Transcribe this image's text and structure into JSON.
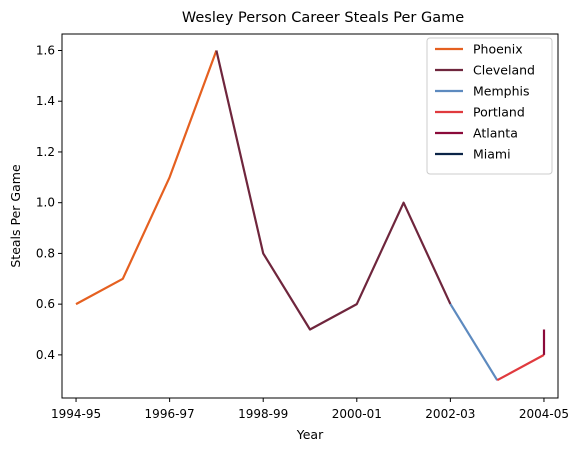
{
  "chart_data": {
    "type": "line",
    "title": "Wesley Person Career Steals Per Game",
    "xlabel": "Year",
    "ylabel": "Steals Per Game",
    "x_tick_labels": [
      "1994-95",
      "1996-97",
      "1998-99",
      "2000-01",
      "2002-03",
      "2004-05"
    ],
    "y_ticks": [
      0.4,
      0.6,
      0.8,
      1.0,
      1.2,
      1.4,
      1.6
    ],
    "y_tick_labels": [
      "0.4",
      "0.6",
      "0.8",
      "1.0",
      "1.2",
      "1.4",
      "1.6"
    ],
    "xlim": [
      -0.3,
      10.3
    ],
    "ylim": [
      0.23,
      1.665
    ],
    "grid": false,
    "legend_position": "top-right",
    "series": [
      {
        "name": "Phoenix",
        "color": "#E56020",
        "x": [
          "1994-95",
          "1995-96",
          "1996-97",
          "1997-98"
        ],
        "values": [
          0.6,
          0.7,
          1.1,
          1.6
        ]
      },
      {
        "name": "Cleveland",
        "color": "#6F263D",
        "x": [
          "1997-98",
          "1998-99",
          "1999-00",
          "2000-01",
          "2001-02",
          "2002-03"
        ],
        "values": [
          1.6,
          0.8,
          0.5,
          0.6,
          1.0,
          0.6
        ]
      },
      {
        "name": "Memphis",
        "color": "#5D8ABF",
        "x": [
          "2002-03",
          "2003-04"
        ],
        "values": [
          0.6,
          0.3
        ]
      },
      {
        "name": "Portland",
        "color": "#E03A3E",
        "x": [
          "2003-04",
          "2004-05"
        ],
        "values": [
          0.3,
          0.4
        ]
      },
      {
        "name": "Atlanta",
        "color": "#8B0A3A",
        "x": [
          "2004-05",
          "2004-05"
        ],
        "values": [
          0.4,
          0.5
        ]
      },
      {
        "name": "Miami",
        "color": "#0B2447",
        "x": [],
        "values": []
      }
    ]
  }
}
